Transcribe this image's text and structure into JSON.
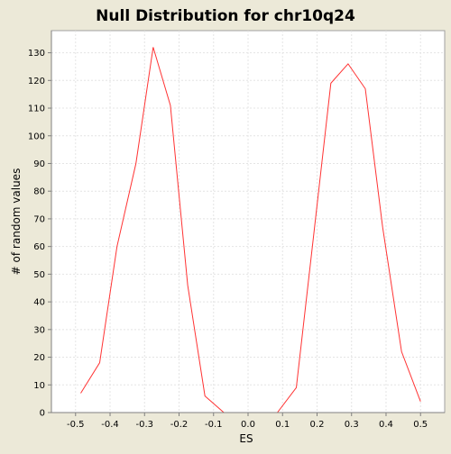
{
  "chart_data": {
    "type": "line",
    "title": "Null Distribution for chr10q24",
    "xlabel": "ES",
    "ylabel": "# of random values",
    "xlim": [
      -0.57,
      0.57
    ],
    "ylim": [
      0,
      138
    ],
    "x_ticks": [
      -0.5,
      -0.4,
      -0.3,
      -0.2,
      -0.1,
      0.0,
      0.1,
      0.2,
      0.3,
      0.4,
      0.5
    ],
    "x_tick_labels": [
      "-0.5",
      "-0.4",
      "-0.3",
      "-0.2",
      "-0.1",
      "0.0",
      "0.1",
      "0.2",
      "0.3",
      "0.4",
      "0.5"
    ],
    "y_ticks": [
      0,
      10,
      20,
      30,
      40,
      50,
      60,
      70,
      80,
      90,
      100,
      110,
      120,
      130
    ],
    "grid": true,
    "legend": "none",
    "series": [
      {
        "color": "#FF3333",
        "x": [
          -0.485,
          -0.43,
          -0.38,
          -0.325,
          -0.275,
          -0.225,
          -0.175,
          -0.125,
          -0.07,
          0.085,
          0.14,
          0.19,
          0.24,
          0.29,
          0.34,
          0.39,
          0.445,
          0.5
        ],
        "y": [
          7,
          18,
          60,
          90,
          132,
          111,
          46,
          6,
          0,
          0,
          9,
          64,
          119,
          126,
          117,
          67,
          22,
          4
        ]
      }
    ]
  },
  "colors": {
    "page_background": "#ECE9D8",
    "plot_background": "#FFFFFF",
    "gridline": "#E4E4E4",
    "axis": "#808080",
    "series_line": "#FF3333"
  }
}
